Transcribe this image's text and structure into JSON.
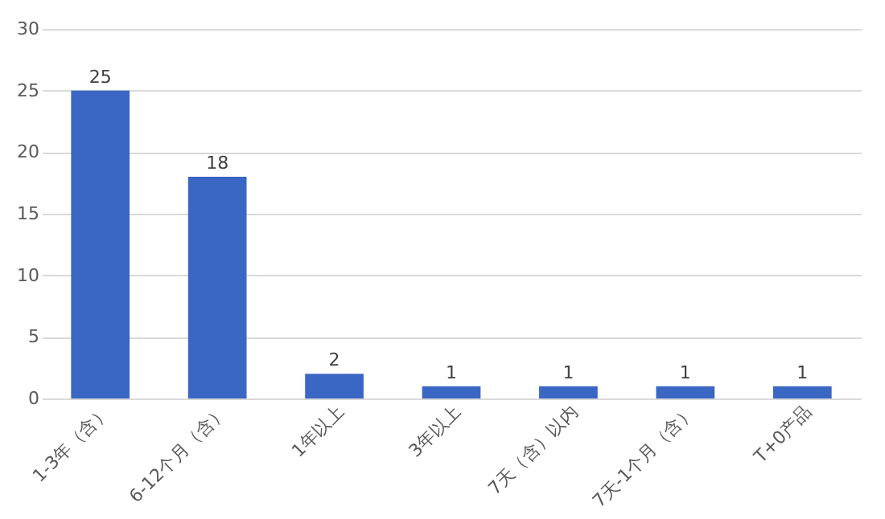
{
  "chart_data": {
    "type": "bar",
    "categories": [
      "1-3年（含）",
      "6-12个月（含）",
      "1年以上",
      "3年以上",
      "7天（含）以内",
      "7天-1个月（含）",
      "T+0产品"
    ],
    "values": [
      25,
      18,
      2,
      1,
      1,
      1,
      1
    ],
    "color": "#3b67c4",
    "ylim": [
      0,
      30
    ],
    "yticks": [
      0,
      5,
      10,
      15,
      20,
      25,
      30
    ],
    "grid": "y",
    "data_labels": true
  }
}
